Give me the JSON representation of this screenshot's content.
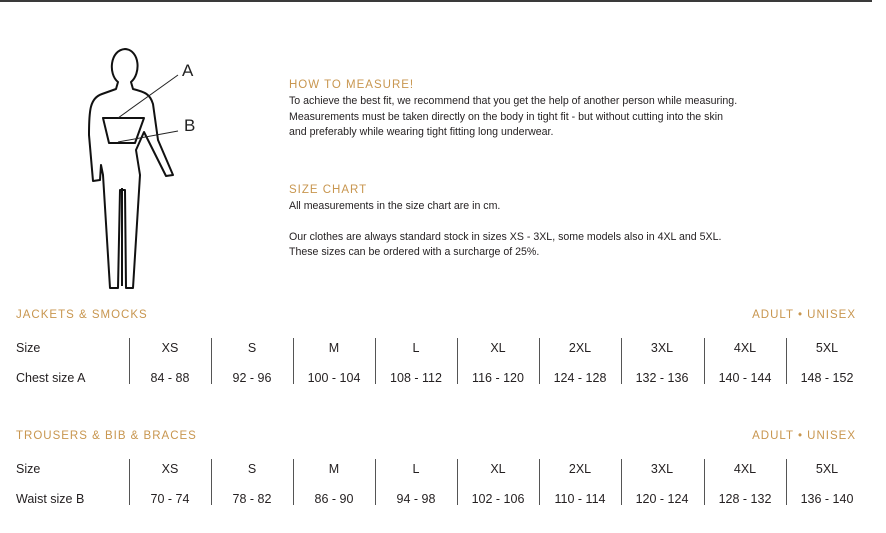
{
  "figure": {
    "label_a": "A",
    "label_b": "B"
  },
  "how_to_measure": {
    "heading": "HOW TO MEASURE!",
    "lines": [
      "To achieve the best fit, we recommend that you get the help of another person while measuring.",
      "Measurements must be taken directly on the body in tight fit - but without cutting into the skin",
      "and preferably while wearing tight fitting long underwear."
    ]
  },
  "size_chart": {
    "heading": "SIZE CHART",
    "line1": "All measurements in the size chart are in cm.",
    "line2": "Our clothes are always standard stock in sizes XS - 3XL, some models also in 4XL and 5XL.",
    "line3": "These sizes can be ordered with a surcharge of 25%."
  },
  "colors": {
    "accent": "#c8964f",
    "text": "#231f20"
  },
  "tables": [
    {
      "title": "JACKETS & SMOCKS",
      "badge": "ADULT • UNISEX",
      "rows": [
        {
          "label": "Size",
          "values": [
            "XS",
            "S",
            "M",
            "L",
            "XL",
            "2XL",
            "3XL",
            "4XL",
            "5XL"
          ]
        },
        {
          "label": "Chest size A",
          "values": [
            "84 - 88",
            "92 - 96",
            "100 - 104",
            "108 - 112",
            "116 - 120",
            "124 - 128",
            "132 - 136",
            "140 - 144",
            "148 - 152"
          ]
        }
      ]
    },
    {
      "title": "TROUSERS & BIB & BRACES",
      "badge": "ADULT • UNISEX",
      "rows": [
        {
          "label": "Size",
          "values": [
            "XS",
            "S",
            "M",
            "L",
            "XL",
            "2XL",
            "3XL",
            "4XL",
            "5XL"
          ]
        },
        {
          "label": "Waist size B",
          "values": [
            "70 - 74",
            "78 - 82",
            "86 - 90",
            "94 - 98",
            "102 - 106",
            "110 - 114",
            "120 - 124",
            "128 - 132",
            "136 - 140"
          ]
        }
      ]
    }
  ]
}
